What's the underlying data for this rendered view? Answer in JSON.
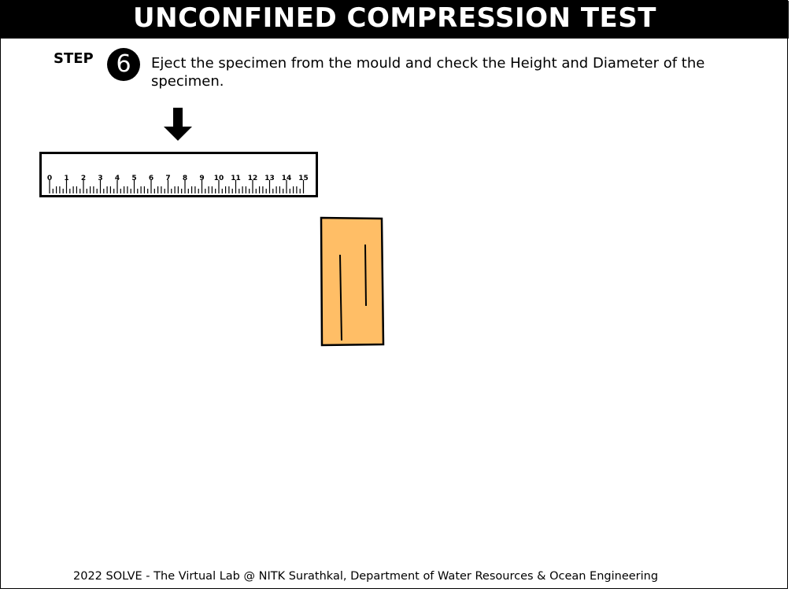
{
  "page": {
    "title": "UNCONFINED COMPRESSION TEST"
  },
  "step": {
    "label": "STEP",
    "number": "6",
    "instruction": "Eject the specimen from the mould and check the Height and Diameter of the specimen."
  },
  "ruler": {
    "tick_labels": [
      "0",
      "1",
      "2",
      "3",
      "4",
      "5",
      "6",
      "7",
      "8",
      "9",
      "10",
      "11",
      "12",
      "13",
      "14",
      "15"
    ]
  },
  "specimen": {
    "fill_color": "#FFBE66"
  },
  "footer": {
    "text": "2022 SOLVE - The Virtual Lab @ NITK Surathkal, Department of Water Resources & Ocean Engineering"
  },
  "icons": {
    "arrow": "arrow-down-icon"
  }
}
